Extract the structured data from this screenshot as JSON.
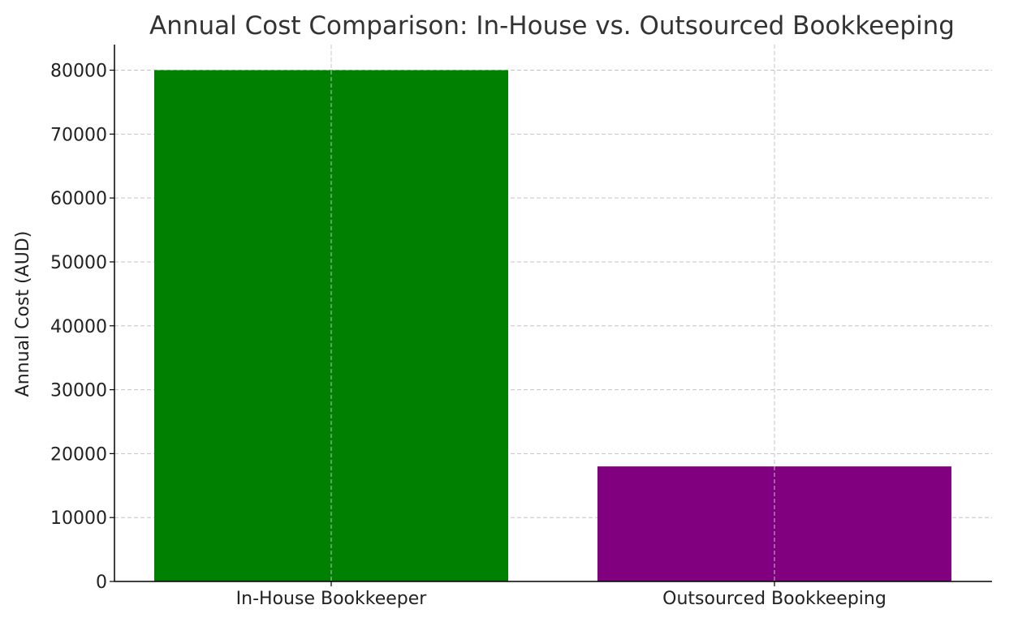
{
  "chart_data": {
    "type": "bar",
    "title": "Annual Cost Comparison: In-House vs. Outsourced Bookkeeping",
    "xlabel": "",
    "ylabel": "Annual Cost (AUD)",
    "categories": [
      "In-House Bookkeeper",
      "Outsourced Bookkeeping"
    ],
    "values": [
      80000,
      18000
    ],
    "colors": [
      "#008000",
      "#800080"
    ],
    "ylim": [
      0,
      84000
    ],
    "yticks": [
      0,
      10000,
      20000,
      30000,
      40000,
      50000,
      60000,
      70000,
      80000
    ],
    "ytick_labels": [
      "0",
      "10000",
      "20000",
      "30000",
      "40000",
      "50000",
      "60000",
      "70000",
      "80000"
    ],
    "grid": true,
    "grid_color": "#c4c4c4"
  }
}
